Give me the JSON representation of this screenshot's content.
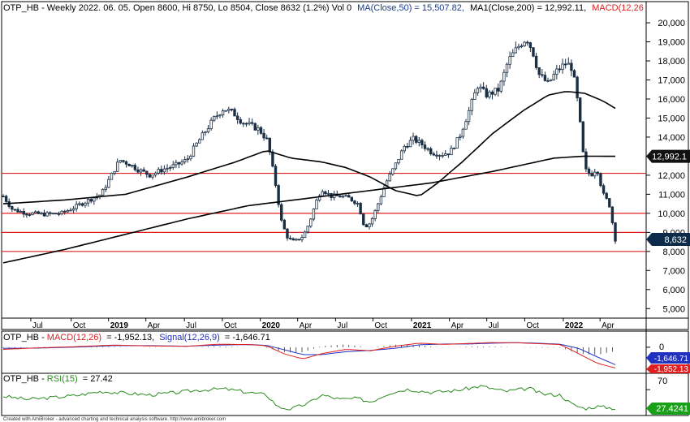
{
  "chart_data": {
    "type": "candlestick",
    "symbol_title": "OTP_HB - Weekly 2022. 06. 05. Open 8600, Hi 8750, Lo 8504, Close 8632 (1.2%) Vol 0",
    "ma50_label": "MA(Close,50) = 15,507.82,",
    "ma200_label": "MA1(Close,200) = 12,992.11,",
    "macd_header_label": "MACD(12,26",
    "ylim": [
      4500,
      20600
    ],
    "y_ticks": [
      5000,
      6000,
      7000,
      8000,
      9000,
      10000,
      11000,
      12000,
      13000,
      14000,
      15000,
      16000,
      17000,
      18000,
      19000,
      20000
    ],
    "y_tick_labels": [
      "5,000",
      "6,000",
      "7,000",
      "8,000",
      "9,000",
      "10,000",
      "11,000",
      "12,000",
      "13,000",
      "14,000",
      "15,000",
      "16,000",
      "17,000",
      "18,000",
      "19,000",
      "20,000"
    ],
    "x_labels": [
      {
        "label": "Jul",
        "t": 0.045,
        "bold": false
      },
      {
        "label": "Oct",
        "t": 0.111,
        "bold": false
      },
      {
        "label": "2019",
        "t": 0.172,
        "bold": true
      },
      {
        "label": "Apr",
        "t": 0.233,
        "bold": false
      },
      {
        "label": "Jul",
        "t": 0.296,
        "bold": false
      },
      {
        "label": "Oct",
        "t": 0.358,
        "bold": false
      },
      {
        "label": "2020",
        "t": 0.42,
        "bold": true
      },
      {
        "label": "Apr",
        "t": 0.481,
        "bold": false
      },
      {
        "label": "Jul",
        "t": 0.543,
        "bold": false
      },
      {
        "label": "Oct",
        "t": 0.604,
        "bold": false
      },
      {
        "label": "2021",
        "t": 0.667,
        "bold": true
      },
      {
        "label": "Apr",
        "t": 0.729,
        "bold": false
      },
      {
        "label": "Jul",
        "t": 0.79,
        "bold": false
      },
      {
        "label": "Oct",
        "t": 0.852,
        "bold": false
      },
      {
        "label": "2022",
        "t": 0.915,
        "bold": true
      },
      {
        "label": "Apr",
        "t": 0.975,
        "bold": false
      }
    ],
    "horizontal_levels": [
      12100,
      10000,
      9000,
      8000
    ],
    "price_path": [
      [
        0.0,
        10900
      ],
      [
        0.015,
        10200
      ],
      [
        0.04,
        10000
      ],
      [
        0.07,
        9950
      ],
      [
        0.095,
        10000
      ],
      [
        0.115,
        10300
      ],
      [
        0.14,
        10700
      ],
      [
        0.16,
        11000
      ],
      [
        0.175,
        11900
      ],
      [
        0.19,
        12800
      ],
      [
        0.205,
        12600
      ],
      [
        0.22,
        12300
      ],
      [
        0.24,
        12000
      ],
      [
        0.26,
        12300
      ],
      [
        0.28,
        12500
      ],
      [
        0.3,
        12800
      ],
      [
        0.315,
        13600
      ],
      [
        0.33,
        14300
      ],
      [
        0.345,
        15000
      ],
      [
        0.36,
        15500
      ],
      [
        0.375,
        15300
      ],
      [
        0.39,
        14800
      ],
      [
        0.405,
        14600
      ],
      [
        0.418,
        14400
      ],
      [
        0.432,
        13800
      ],
      [
        0.445,
        11500
      ],
      [
        0.455,
        9500
      ],
      [
        0.465,
        8700
      ],
      [
        0.475,
        8500
      ],
      [
        0.49,
        8800
      ],
      [
        0.5,
        9500
      ],
      [
        0.51,
        10500
      ],
      [
        0.52,
        11300
      ],
      [
        0.535,
        10900
      ],
      [
        0.55,
        10900
      ],
      [
        0.565,
        10800
      ],
      [
        0.58,
        10500
      ],
      [
        0.59,
        9300
      ],
      [
        0.6,
        9500
      ],
      [
        0.61,
        10300
      ],
      [
        0.625,
        11600
      ],
      [
        0.64,
        12500
      ],
      [
        0.655,
        13500
      ],
      [
        0.67,
        13900
      ],
      [
        0.685,
        13600
      ],
      [
        0.7,
        13200
      ],
      [
        0.715,
        13100
      ],
      [
        0.73,
        13200
      ],
      [
        0.745,
        14000
      ],
      [
        0.76,
        15300
      ],
      [
        0.775,
        16700
      ],
      [
        0.79,
        16200
      ],
      [
        0.81,
        16500
      ],
      [
        0.825,
        18000
      ],
      [
        0.84,
        18700
      ],
      [
        0.855,
        19200
      ],
      [
        0.865,
        18500
      ],
      [
        0.875,
        17300
      ],
      [
        0.89,
        16800
      ],
      [
        0.905,
        17500
      ],
      [
        0.92,
        17900
      ],
      [
        0.93,
        17600
      ],
      [
        0.94,
        15500
      ],
      [
        0.95,
        12300
      ],
      [
        0.96,
        12000
      ],
      [
        0.97,
        12400
      ],
      [
        0.98,
        11000
      ],
      [
        0.99,
        10500
      ],
      [
        1.0,
        8632
      ]
    ],
    "series": [
      {
        "name": "MA(Close,50)",
        "points": [
          [
            0.0,
            10500
          ],
          [
            0.1,
            10700
          ],
          [
            0.2,
            11000
          ],
          [
            0.3,
            11900
          ],
          [
            0.38,
            12700
          ],
          [
            0.43,
            13300
          ],
          [
            0.47,
            12900
          ],
          [
            0.52,
            12700
          ],
          [
            0.56,
            12400
          ],
          [
            0.6,
            11900
          ],
          [
            0.64,
            11200
          ],
          [
            0.68,
            10900
          ],
          [
            0.71,
            11600
          ],
          [
            0.75,
            12700
          ],
          [
            0.8,
            14200
          ],
          [
            0.85,
            15400
          ],
          [
            0.89,
            16200
          ],
          [
            0.92,
            16400
          ],
          [
            0.95,
            16300
          ],
          [
            0.98,
            15900
          ],
          [
            1.0,
            15507.82
          ]
        ]
      },
      {
        "name": "MA1(Close,200)",
        "points": [
          [
            0.0,
            7400
          ],
          [
            0.1,
            8100
          ],
          [
            0.2,
            8900
          ],
          [
            0.3,
            9700
          ],
          [
            0.4,
            10400
          ],
          [
            0.5,
            10800
          ],
          [
            0.6,
            11200
          ],
          [
            0.7,
            11600
          ],
          [
            0.8,
            12200
          ],
          [
            0.9,
            12900
          ],
          [
            0.95,
            13000
          ],
          [
            1.0,
            12992.11
          ]
        ]
      }
    ],
    "last_close_label": "8,632",
    "ma200_value_label": "12,992.1",
    "macd_panel": {
      "label_prefix": "OTP_HB - ",
      "macd_label": "MACD(12,26)",
      "macd_value": "= -1,952.13,",
      "signal_label": "Signal(12,26,9)",
      "signal_value": "= -1,646.71",
      "zero_tick": "0",
      "signal_box_label": "-1,646.71",
      "macd_box_label": "-1,952.13",
      "ylim": [
        -2300,
        600
      ],
      "macd_points": [
        [
          0.0,
          -200
        ],
        [
          0.06,
          -50
        ],
        [
          0.12,
          60
        ],
        [
          0.18,
          200
        ],
        [
          0.24,
          120
        ],
        [
          0.3,
          90
        ],
        [
          0.35,
          280
        ],
        [
          0.4,
          250
        ],
        [
          0.43,
          140
        ],
        [
          0.46,
          -650
        ],
        [
          0.49,
          -1100
        ],
        [
          0.52,
          -600
        ],
        [
          0.56,
          -200
        ],
        [
          0.6,
          -330
        ],
        [
          0.64,
          100
        ],
        [
          0.68,
          380
        ],
        [
          0.72,
          270
        ],
        [
          0.76,
          350
        ],
        [
          0.8,
          440
        ],
        [
          0.84,
          420
        ],
        [
          0.88,
          320
        ],
        [
          0.91,
          250
        ],
        [
          0.94,
          -600
        ],
        [
          0.97,
          -1500
        ],
        [
          1.0,
          -1952.13
        ]
      ],
      "signal_points": [
        [
          0.0,
          -100
        ],
        [
          0.06,
          -80
        ],
        [
          0.12,
          20
        ],
        [
          0.18,
          150
        ],
        [
          0.24,
          150
        ],
        [
          0.3,
          100
        ],
        [
          0.35,
          200
        ],
        [
          0.4,
          250
        ],
        [
          0.43,
          180
        ],
        [
          0.46,
          -250
        ],
        [
          0.49,
          -700
        ],
        [
          0.52,
          -700
        ],
        [
          0.56,
          -420
        ],
        [
          0.6,
          -300
        ],
        [
          0.64,
          -100
        ],
        [
          0.68,
          230
        ],
        [
          0.72,
          300
        ],
        [
          0.76,
          300
        ],
        [
          0.8,
          380
        ],
        [
          0.84,
          430
        ],
        [
          0.88,
          360
        ],
        [
          0.91,
          280
        ],
        [
          0.94,
          -100
        ],
        [
          0.97,
          -900
        ],
        [
          1.0,
          -1646.71
        ]
      ]
    },
    "rsi_panel": {
      "label_prefix": "OTP_HB - ",
      "rsi_label": "RSI(15)",
      "rsi_value": "= 27.42",
      "tick_70": "70",
      "value_box_label": "27.4241",
      "ylim": [
        15,
        85
      ],
      "points": [
        [
          0.0,
          55
        ],
        [
          0.04,
          48
        ],
        [
          0.08,
          52
        ],
        [
          0.12,
          57
        ],
        [
          0.16,
          66
        ],
        [
          0.2,
          62
        ],
        [
          0.24,
          58
        ],
        [
          0.28,
          63
        ],
        [
          0.32,
          69
        ],
        [
          0.36,
          72
        ],
        [
          0.4,
          64
        ],
        [
          0.43,
          58
        ],
        [
          0.45,
          30
        ],
        [
          0.47,
          26
        ],
        [
          0.5,
          40
        ],
        [
          0.52,
          58
        ],
        [
          0.55,
          48
        ],
        [
          0.58,
          50
        ],
        [
          0.6,
          42
        ],
        [
          0.63,
          62
        ],
        [
          0.66,
          71
        ],
        [
          0.7,
          64
        ],
        [
          0.74,
          68
        ],
        [
          0.78,
          78
        ],
        [
          0.82,
          66
        ],
        [
          0.86,
          73
        ],
        [
          0.88,
          60
        ],
        [
          0.91,
          58
        ],
        [
          0.93,
          36
        ],
        [
          0.95,
          27
        ],
        [
          0.97,
          32
        ],
        [
          1.0,
          27.42
        ]
      ]
    },
    "colors": {
      "candle": "#1a2e44",
      "ma": "#000000",
      "levels": "#e02020",
      "macd": "#e02020",
      "signal": "#2030c0",
      "rsi": "#2a8c1e",
      "last_badge": "#0c2a4a",
      "ma_badge": "#111111",
      "rsi_badge": "#18a018",
      "title_blue": "#1a3c8c",
      "title_red": "#e02020"
    },
    "footer": "Created with AmiBroker - advanced charting and technical analysis software. http://www.amibroker.com"
  }
}
